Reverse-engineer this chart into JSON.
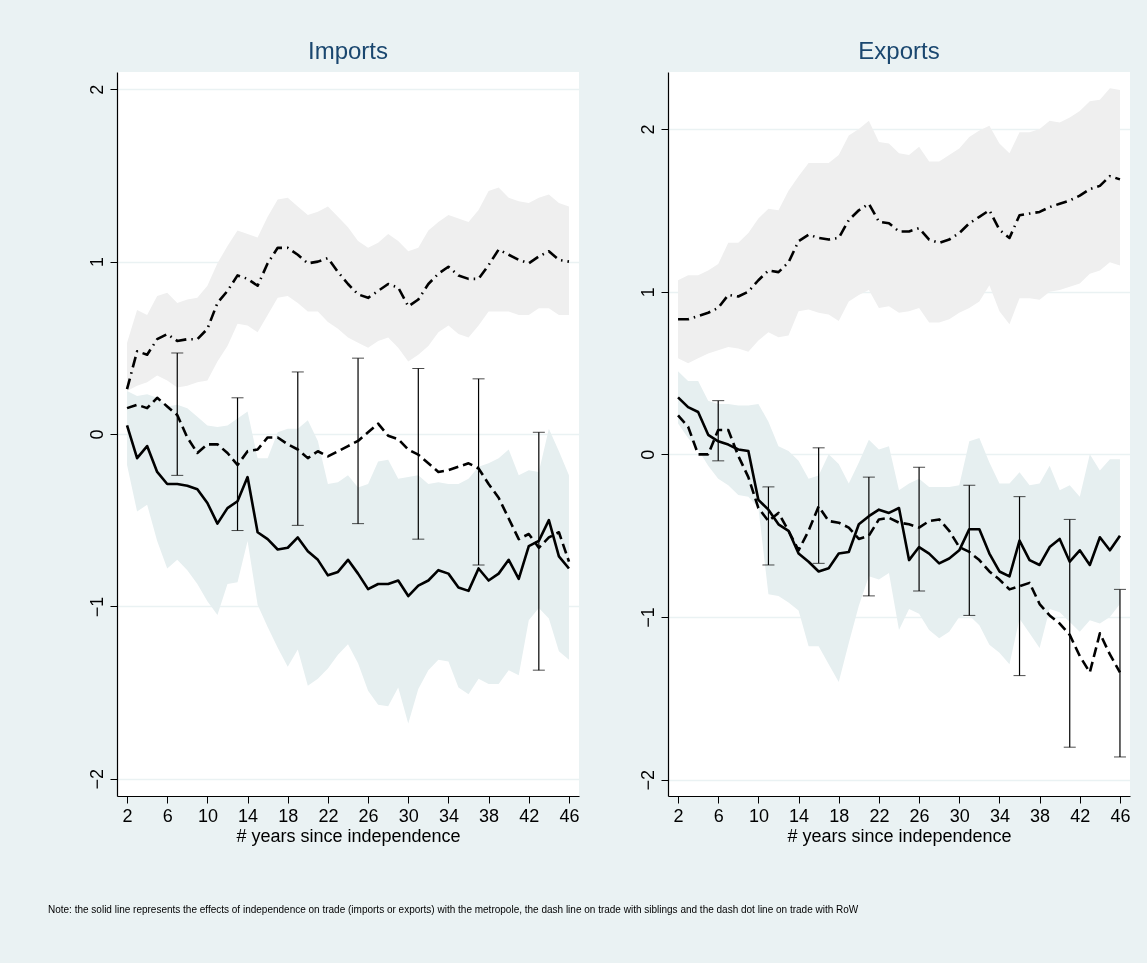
{
  "chart_data": [
    {
      "type": "line",
      "title": "Imports",
      "xlabel": "# years since independence",
      "x": [
        2,
        3,
        4,
        5,
        6,
        7,
        8,
        9,
        10,
        11,
        12,
        13,
        14,
        15,
        16,
        17,
        18,
        19,
        20,
        21,
        22,
        23,
        24,
        25,
        26,
        27,
        28,
        29,
        30,
        31,
        32,
        33,
        34,
        35,
        36,
        37,
        38,
        39,
        40,
        41,
        42,
        43,
        44,
        45,
        46
      ],
      "xlim": [
        1,
        47
      ],
      "xticks": [
        2,
        6,
        10,
        14,
        18,
        22,
        26,
        30,
        34,
        38,
        42,
        46
      ],
      "ylim": [
        -2.1,
        2.1
      ],
      "yticks": [
        -2,
        -1,
        0,
        1,
        2
      ],
      "grid": "y",
      "annotations": [
        "Note: the solid line represents the effects of independence on trade (imports or exports) with the metropole, the dash line on trade with siblings and the dash dot line on trade with RoW"
      ],
      "series": [
        {
          "color": "#000000",
          "line_style": "solid",
          "values": [
            0.05,
            -0.14,
            -0.07,
            -0.22,
            -0.29,
            -0.29,
            -0.3,
            -0.32,
            -0.4,
            -0.52,
            -0.43,
            -0.39,
            -0.25,
            -0.57,
            -0.61,
            -0.67,
            -0.66,
            -0.6,
            -0.68,
            -0.73,
            -0.82,
            -0.8,
            -0.73,
            -0.81,
            -0.9,
            -0.87,
            -0.87,
            -0.85,
            -0.94,
            -0.88,
            -0.85,
            -0.79,
            -0.81,
            -0.89,
            -0.91,
            -0.78,
            -0.85,
            -0.81,
            -0.73,
            -0.84,
            -0.65,
            -0.62,
            -0.5,
            -0.71,
            -0.78
          ],
          "lower": [
            -0.18,
            -0.45,
            -0.41,
            -0.62,
            -0.78,
            -0.73,
            -0.79,
            -0.87,
            -0.97,
            -1.05,
            -0.87,
            -0.86,
            -0.62,
            -0.99,
            -1.12,
            -1.24,
            -1.35,
            -1.25,
            -1.46,
            -1.42,
            -1.36,
            -1.28,
            -1.22,
            -1.33,
            -1.49,
            -1.57,
            -1.58,
            -1.47,
            -1.68,
            -1.48,
            -1.37,
            -1.31,
            -1.32,
            -1.47,
            -1.51,
            -1.42,
            -1.45,
            -1.45,
            -1.37,
            -1.4,
            -1.08,
            -1.01,
            -1.07,
            -1.26,
            -1.31
          ],
          "upper": [
            0.25,
            0.22,
            0.23,
            0.21,
            0.16,
            0.17,
            0.15,
            0.1,
            0.05,
            0.04,
            0.05,
            0.09,
            0.13,
            -0.14,
            -0.14,
            0.01,
            0.03,
            0.03,
            0.08,
            -0.04,
            -0.29,
            -0.28,
            -0.24,
            -0.31,
            -0.29,
            -0.16,
            -0.15,
            -0.26,
            -0.25,
            -0.24,
            -0.29,
            -0.28,
            -0.29,
            -0.29,
            -0.26,
            -0.19,
            -0.17,
            -0.14,
            -0.09,
            -0.24,
            -0.21,
            -0.22,
            0.03,
            -0.1,
            -0.24
          ]
        },
        {
          "color": "#000000",
          "line_style": "dashed",
          "values": [
            0.15,
            0.17,
            0.15,
            0.21,
            0.16,
            0.11,
            -0.02,
            -0.11,
            -0.06,
            -0.06,
            -0.11,
            -0.18,
            -0.1,
            -0.09,
            -0.02,
            -0.02,
            -0.06,
            -0.09,
            -0.14,
            -0.1,
            -0.13,
            -0.1,
            -0.07,
            -0.04,
            0.01,
            0.06,
            -0.01,
            -0.03,
            -0.09,
            -0.12,
            -0.17,
            -0.22,
            -0.21,
            -0.19,
            -0.17,
            -0.2,
            -0.29,
            -0.37,
            -0.49,
            -0.61,
            -0.58,
            -0.66,
            -0.6,
            -0.57,
            -0.74
          ],
          "errors": [
            null,
            null,
            null,
            null,
            null,
            [
              -0.24,
              0.47
            ],
            null,
            null,
            null,
            null,
            null,
            [
              -0.56,
              0.21
            ],
            null,
            null,
            null,
            null,
            null,
            [
              -0.53,
              0.36
            ],
            null,
            null,
            null,
            null,
            null,
            [
              -0.52,
              0.44
            ],
            null,
            null,
            null,
            null,
            null,
            [
              -0.61,
              0.38
            ],
            null,
            null,
            null,
            null,
            null,
            [
              -0.76,
              0.32
            ],
            null,
            null,
            null,
            null,
            null,
            [
              -1.37,
              0.01
            ],
            null,
            null,
            null
          ]
        },
        {
          "color": "#000000",
          "line_style": "dashdot",
          "values": [
            0.26,
            0.48,
            0.46,
            0.55,
            0.58,
            0.54,
            0.55,
            0.55,
            0.61,
            0.76,
            0.83,
            0.92,
            0.9,
            0.86,
            0.99,
            1.08,
            1.08,
            1.04,
            0.99,
            1.0,
            1.02,
            0.94,
            0.87,
            0.81,
            0.79,
            0.83,
            0.87,
            0.85,
            0.74,
            0.78,
            0.87,
            0.93,
            0.97,
            0.92,
            0.9,
            0.9,
            0.98,
            1.07,
            1.04,
            1.01,
            0.99,
            1.03,
            1.06,
            1.01,
            1.0
          ],
          "lower": [
            0.25,
            0.28,
            0.3,
            0.34,
            0.31,
            0.27,
            0.28,
            0.3,
            0.31,
            0.42,
            0.51,
            0.64,
            0.63,
            0.59,
            0.69,
            0.79,
            0.8,
            0.76,
            0.71,
            0.71,
            0.65,
            0.61,
            0.56,
            0.53,
            0.5,
            0.54,
            0.56,
            0.5,
            0.42,
            0.46,
            0.51,
            0.59,
            0.63,
            0.58,
            0.56,
            0.63,
            0.71,
            0.71,
            0.71,
            0.69,
            0.69,
            0.73,
            0.73,
            0.69,
            0.69
          ],
          "upper": [
            0.53,
            0.72,
            0.69,
            0.8,
            0.82,
            0.76,
            0.78,
            0.79,
            0.86,
            0.99,
            1.09,
            1.18,
            1.16,
            1.14,
            1.26,
            1.36,
            1.37,
            1.32,
            1.27,
            1.29,
            1.32,
            1.26,
            1.2,
            1.12,
            1.08,
            1.11,
            1.16,
            1.12,
            1.06,
            1.08,
            1.18,
            1.23,
            1.27,
            1.25,
            1.23,
            1.3,
            1.41,
            1.43,
            1.37,
            1.35,
            1.34,
            1.37,
            1.39,
            1.34,
            1.32
          ]
        }
      ]
    },
    {
      "type": "line",
      "title": "Exports",
      "xlabel": "# years since independence",
      "x": [
        2,
        3,
        4,
        5,
        6,
        7,
        8,
        9,
        10,
        11,
        12,
        13,
        14,
        15,
        16,
        17,
        18,
        19,
        20,
        21,
        22,
        23,
        24,
        25,
        26,
        27,
        28,
        29,
        30,
        31,
        32,
        33,
        34,
        35,
        36,
        37,
        38,
        39,
        40,
        41,
        42,
        43,
        44,
        45,
        46
      ],
      "xlim": [
        1,
        47
      ],
      "xticks": [
        2,
        6,
        10,
        14,
        18,
        22,
        26,
        30,
        34,
        38,
        42,
        46
      ],
      "ylim": [
        -2.1,
        2.35
      ],
      "yticks": [
        -2,
        -1,
        0,
        1,
        2
      ],
      "grid": "y",
      "series": [
        {
          "color": "#000000",
          "line_style": "solid",
          "values": [
            0.35,
            0.29,
            0.26,
            0.12,
            0.08,
            0.06,
            0.03,
            0.02,
            -0.28,
            -0.34,
            -0.43,
            -0.47,
            -0.61,
            -0.66,
            -0.72,
            -0.7,
            -0.61,
            -0.6,
            -0.43,
            -0.38,
            -0.34,
            -0.36,
            -0.33,
            -0.65,
            -0.57,
            -0.61,
            -0.67,
            -0.64,
            -0.59,
            -0.46,
            -0.46,
            -0.61,
            -0.72,
            -0.75,
            -0.53,
            -0.65,
            -0.68,
            -0.57,
            -0.52,
            -0.66,
            -0.59,
            -0.68,
            -0.51,
            -0.59,
            -0.5
          ],
          "lower": [
            0.19,
            0.1,
            0.03,
            -0.07,
            -0.15,
            -0.19,
            -0.25,
            -0.26,
            -0.33,
            -0.86,
            -0.87,
            -0.91,
            -0.96,
            -1.18,
            -1.18,
            -1.29,
            -1.4,
            -1.16,
            -0.93,
            -0.75,
            -0.77,
            -0.73,
            -1.08,
            -0.95,
            -0.98,
            -1.08,
            -1.13,
            -1.09,
            -1.0,
            -0.99,
            -1.05,
            -1.17,
            -1.22,
            -1.29,
            -1.01,
            -1.1,
            -1.19,
            -0.95,
            -0.97,
            -1.03,
            -1.09,
            -1.02,
            -1.04,
            -1.0,
            -0.92
          ],
          "upper": [
            0.51,
            0.45,
            0.45,
            0.33,
            0.31,
            0.31,
            0.3,
            0.3,
            0.31,
            0.2,
            0.05,
            0.02,
            -0.04,
            -0.15,
            -0.13,
            0.0,
            -0.06,
            -0.18,
            -0.05,
            0.09,
            0.03,
            0.05,
            -0.22,
            -0.18,
            -0.15,
            -0.2,
            -0.2,
            -0.2,
            -0.19,
            0.08,
            0.1,
            -0.05,
            -0.18,
            -0.18,
            -0.11,
            -0.19,
            -0.18,
            -0.07,
            -0.22,
            -0.19,
            -0.26,
            0.0,
            -0.1,
            -0.03,
            -0.03
          ]
        },
        {
          "color": "#000000",
          "line_style": "dashed",
          "values": [
            0.24,
            0.17,
            0.0,
            0.0,
            0.15,
            0.15,
            -0.01,
            -0.14,
            -0.33,
            -0.41,
            -0.36,
            -0.47,
            -0.59,
            -0.47,
            -0.32,
            -0.41,
            -0.42,
            -0.45,
            -0.52,
            -0.5,
            -0.4,
            -0.39,
            -0.42,
            -0.43,
            -0.45,
            -0.41,
            -0.4,
            -0.47,
            -0.57,
            -0.6,
            -0.65,
            -0.72,
            -0.77,
            -0.83,
            -0.81,
            -0.79,
            -0.92,
            -0.99,
            -1.04,
            -1.11,
            -1.24,
            -1.34,
            -1.1,
            -1.23,
            -1.34
          ],
          "errors": [
            null,
            null,
            null,
            null,
            [
              -0.04,
              0.33
            ],
            null,
            null,
            null,
            null,
            [
              -0.68,
              -0.2
            ],
            null,
            null,
            null,
            null,
            [
              -0.67,
              0.04
            ],
            null,
            null,
            null,
            null,
            [
              -0.87,
              -0.14
            ],
            null,
            null,
            null,
            null,
            [
              -0.84,
              -0.08
            ],
            null,
            null,
            null,
            null,
            [
              -0.99,
              -0.19
            ],
            null,
            null,
            null,
            null,
            [
              -1.36,
              -0.26
            ],
            null,
            null,
            null,
            null,
            [
              -1.8,
              -0.4
            ],
            null,
            null,
            null,
            null,
            [
              -1.86,
              -0.83
            ]
          ]
        },
        {
          "color": "#000000",
          "line_style": "dashdot",
          "values": [
            0.83,
            0.83,
            0.85,
            0.87,
            0.9,
            0.98,
            0.97,
            1.0,
            1.07,
            1.13,
            1.12,
            1.18,
            1.31,
            1.35,
            1.33,
            1.32,
            1.33,
            1.44,
            1.5,
            1.54,
            1.43,
            1.42,
            1.37,
            1.37,
            1.39,
            1.32,
            1.3,
            1.32,
            1.36,
            1.42,
            1.46,
            1.5,
            1.38,
            1.33,
            1.47,
            1.48,
            1.49,
            1.52,
            1.54,
            1.56,
            1.59,
            1.63,
            1.65,
            1.71,
            1.69
          ],
          "lower": [
            0.59,
            0.56,
            0.59,
            0.62,
            0.64,
            0.66,
            0.65,
            0.63,
            0.7,
            0.75,
            0.72,
            0.73,
            0.88,
            0.89,
            0.87,
            0.86,
            0.82,
            0.94,
            0.98,
            1.01,
            0.9,
            0.91,
            0.87,
            0.88,
            0.9,
            0.81,
            0.81,
            0.83,
            0.87,
            0.9,
            0.94,
            1.04,
            0.88,
            0.8,
            0.96,
            0.96,
            0.95,
            1.0,
            1.01,
            1.03,
            1.05,
            1.11,
            1.13,
            1.18,
            1.16
          ],
          "upper": [
            1.07,
            1.1,
            1.1,
            1.13,
            1.17,
            1.3,
            1.3,
            1.36,
            1.45,
            1.51,
            1.5,
            1.62,
            1.71,
            1.79,
            1.79,
            1.79,
            1.84,
            1.96,
            2.0,
            2.05,
            1.92,
            1.91,
            1.85,
            1.84,
            1.89,
            1.8,
            1.8,
            1.84,
            1.88,
            1.95,
            1.99,
            2.02,
            1.91,
            1.85,
            1.98,
            1.98,
            2.0,
            2.05,
            2.04,
            2.07,
            2.11,
            2.17,
            2.18,
            2.25,
            2.24
          ]
        }
      ]
    }
  ]
}
